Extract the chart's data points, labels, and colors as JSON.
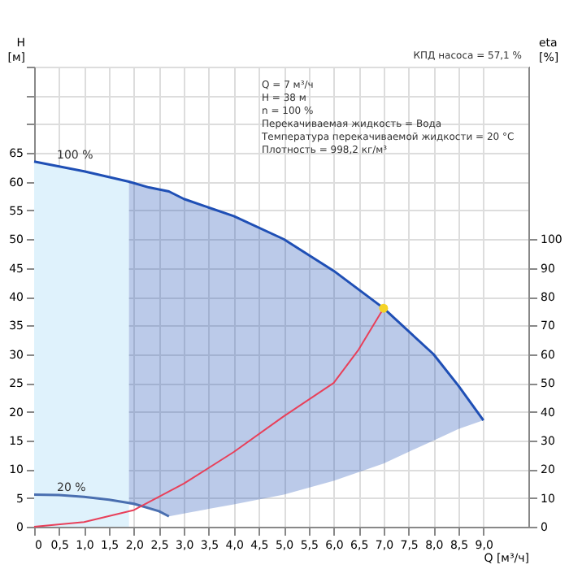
{
  "chart_data": {
    "type": "line",
    "xlabel": "Q [м³/ч]",
    "ylabel": "H\n[м]",
    "y2label": "eta\n[%]",
    "xlim": [
      0,
      9.9
    ],
    "xticks": [
      0,
      {
        "value": 0.5,
        "label": "0,5"
      },
      {
        "value": 1,
        "label": "1,0"
      },
      {
        "value": 1.5,
        "label": "1,5"
      },
      {
        "value": 2,
        "label": "2,0"
      },
      {
        "value": 2.5,
        "label": "2,5"
      },
      {
        "value": 3,
        "label": "3,0"
      },
      {
        "value": 3.5,
        "label": "3,5"
      },
      {
        "value": 4,
        "label": "4,0"
      },
      {
        "value": 4.5,
        "label": "4,5"
      },
      {
        "value": 5,
        "label": "5,0"
      },
      {
        "value": 5.5,
        "label": "5,5"
      },
      {
        "value": 6,
        "label": "6,0"
      },
      {
        "value": 6.5,
        "label": "6,5"
      },
      {
        "value": 7,
        "label": "7,0"
      },
      {
        "value": 7.5,
        "label": "7,5"
      },
      {
        "value": 8,
        "label": "8,0"
      },
      {
        "value": 8.5,
        "label": "8,5"
      },
      {
        "value": 9,
        "label": "9,0"
      }
    ],
    "ylim": [
      0,
      80
    ],
    "yticks": [
      0,
      5,
      10,
      15,
      20,
      25,
      30,
      35,
      40,
      45,
      50,
      55,
      60,
      65,
      {
        "value": 70,
        "label": null
      },
      {
        "value": 75,
        "label": null
      },
      {
        "value": 80,
        "label": null
      }
    ],
    "y2lim": [
      0,
      160
    ],
    "y2ticks": [
      0,
      10,
      20,
      30,
      40,
      50,
      60,
      70,
      80,
      90,
      100
    ],
    "grid": true,
    "legend": false,
    "marker": "none",
    "line_style": "solid",
    "series": [
      {
        "type": "area",
        "color": "#dff2fc",
        "x": [
          0,
          1,
          1.9
        ],
        "values": [
          63.5,
          61.8,
          60
        ]
      },
      {
        "name": "100 %",
        "color": "#1f4fb5",
        "x": [
          0,
          1,
          1.9,
          2.3,
          2.7,
          3,
          4,
          5,
          6,
          7,
          8,
          8.5,
          9
        ],
        "values": [
          63.5,
          61.8,
          60,
          59,
          58.3,
          57,
          54,
          50,
          44.5,
          38,
          30,
          24.5,
          18.5
        ],
        "lower": [
          null,
          null,
          3.9,
          3.2,
          1.8,
          2.3,
          3.9,
          5.6,
          8,
          11,
          15,
          17,
          18.5
        ],
        "upper": [
          null,
          null,
          60,
          59,
          58.3,
          57,
          54,
          50,
          44.5,
          38,
          30,
          24.5,
          18.5
        ]
      },
      {
        "name": "20 %",
        "color": "#4a6fb0",
        "x": [
          0,
          0.5,
          1,
          1.5,
          2,
          2.5,
          2.7
        ],
        "values": [
          5.6,
          5.5,
          5.2,
          4.7,
          4.0,
          2.7,
          1.8
        ]
      },
      {
        "color": "#e8405a",
        "x": [
          0,
          1,
          2,
          3,
          4,
          5,
          6,
          6.5,
          7
        ],
        "values": [
          0,
          0.8,
          2.9,
          7.5,
          13,
          19.2,
          25,
          30.8,
          38
        ]
      },
      {
        "type": "scatter",
        "marker": "circle",
        "color": "#f5d327",
        "x": [
          7
        ],
        "values": [
          38
        ]
      }
    ],
    "annotations": [
      "Q = 7 м³/ч",
      "H = 38 м",
      "n = 100 %",
      "Перекачиваемая жидкость = Вода",
      "Температура перекачиваемой жидкости = 20 °C",
      "Плотность = 998,2 кг/м³",
      "КПД насоса = 57,1 %"
    ]
  }
}
